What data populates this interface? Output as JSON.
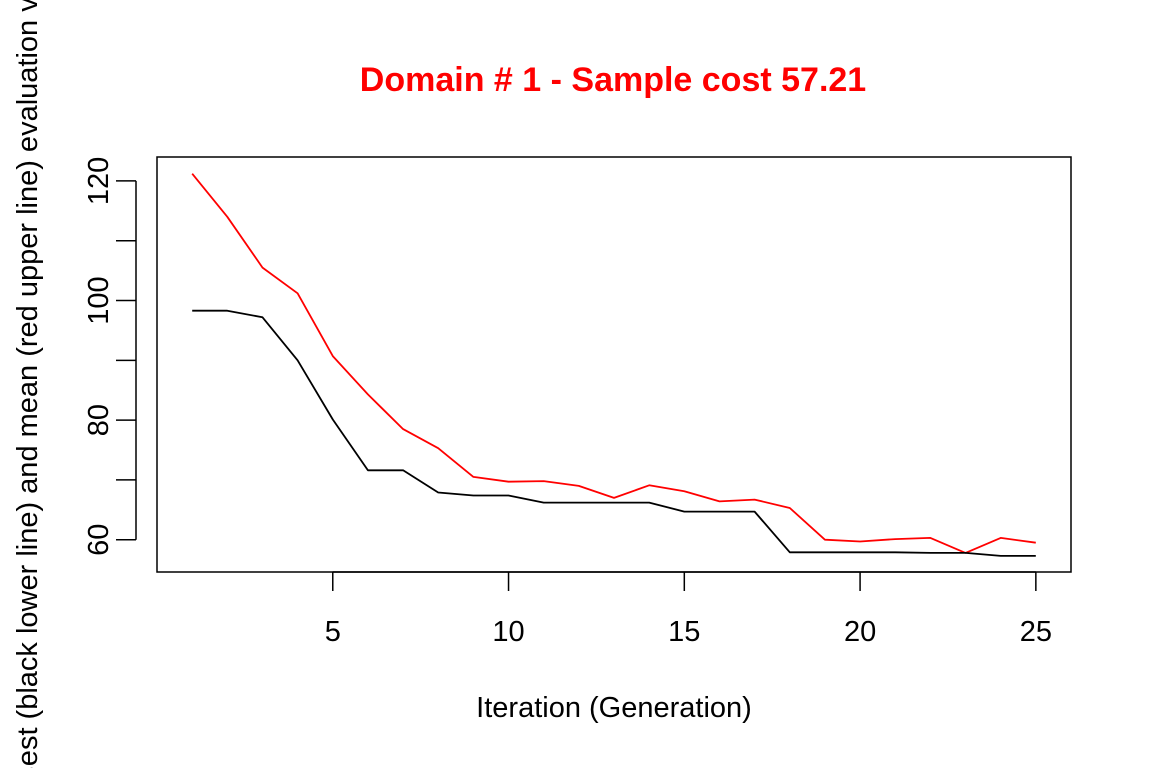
{
  "chart_data": {
    "type": "line",
    "title": "Domain # 1  - Sample cost 57.21",
    "xlabel": "Iteration (Generation)",
    "ylabel": "Best (black lower line) and mean (red upper line) evaluation value",
    "x": [
      1,
      2,
      3,
      4,
      5,
      6,
      7,
      8,
      9,
      10,
      11,
      12,
      13,
      14,
      15,
      16,
      17,
      18,
      19,
      20,
      21,
      22,
      23,
      24,
      25
    ],
    "xticks": [
      5,
      10,
      15,
      20,
      25
    ],
    "yticks": [
      60,
      80,
      100,
      120
    ],
    "xlim": [
      0,
      26
    ],
    "ylim": [
      54.6,
      124
    ],
    "grid": false,
    "series": [
      {
        "color": "#ff0000",
        "values": [
          121.2,
          114.0,
          105.5,
          101.2,
          90.7,
          84.3,
          78.5,
          75.3,
          70.5,
          69.7,
          69.8,
          69.0,
          67.0,
          69.1,
          68.1,
          66.4,
          66.7,
          65.3,
          60.0,
          59.7,
          60.1,
          60.3,
          57.8,
          60.3,
          59.5
        ]
      },
      {
        "color": "#000000",
        "values": [
          98.3,
          98.3,
          97.2,
          90.0,
          80.1,
          71.6,
          71.6,
          67.9,
          67.4,
          67.4,
          66.2,
          66.2,
          66.2,
          66.2,
          64.7,
          64.7,
          64.7,
          57.9,
          57.9,
          57.9,
          57.9,
          57.8,
          57.8,
          57.3,
          57.3
        ]
      }
    ]
  }
}
